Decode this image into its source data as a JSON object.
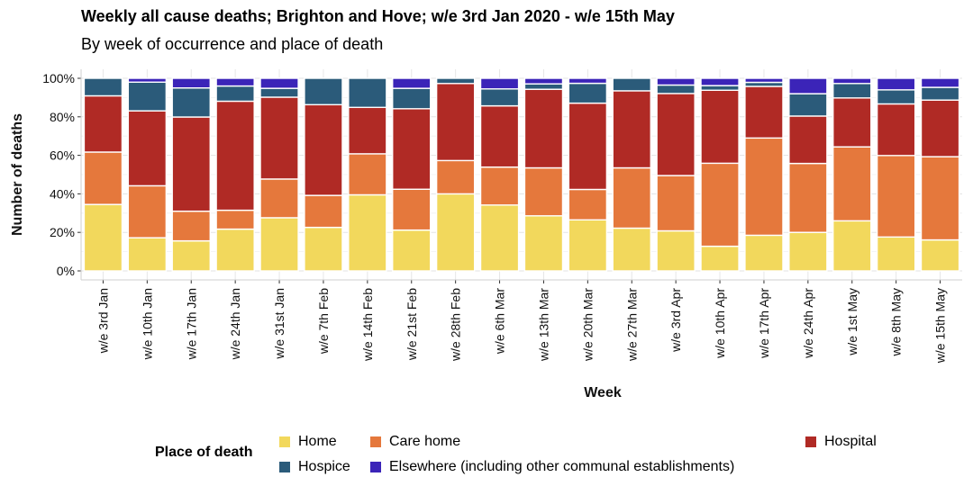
{
  "chart_data": {
    "type": "bar",
    "stacked": "percent",
    "title": "Weekly all cause deaths; Brighton and Hove; w/e 3rd Jan 2020 - w/e 15th May",
    "subtitle": "By week of occurrence and place of death",
    "xlabel": "Week",
    "ylabel": "Number of deaths",
    "ylim": [
      0,
      100
    ],
    "yticks": [
      "0%",
      "20%",
      "40%",
      "60%",
      "80%",
      "100%"
    ],
    "grid": true,
    "categories": [
      "w/e 3rd Jan",
      "w/e 10th Jan",
      "w/e 17th Jan",
      "w/e 24th Jan",
      "w/e 31st Jan",
      "w/e 7th Feb",
      "w/e 14th Feb",
      "w/e 21st Feb",
      "w/e 28th Feb",
      "w/e 6th Mar",
      "w/e 13th Mar",
      "w/e 20th Mar",
      "w/e 27th Mar",
      "w/e 3rd Apr",
      "w/e 10th Apr",
      "w/e 17th Apr",
      "w/e 24th Apr",
      "w/e 1st May",
      "w/e 8th May",
      "w/e 15th May"
    ],
    "series": [
      {
        "name": "Home",
        "color": "#f2d85c",
        "values": [
          34.5,
          17.2,
          15.6,
          21.7,
          27.6,
          22.6,
          39.5,
          21.2,
          40.0,
          34.2,
          28.6,
          26.5,
          22.2,
          20.8,
          12.8,
          18.5,
          20.0,
          26.0,
          17.6,
          16.1
        ]
      },
      {
        "name": "Care home",
        "color": "#e5783c",
        "values": [
          27.2,
          27.0,
          15.4,
          9.8,
          20.1,
          16.6,
          21.3,
          21.2,
          17.3,
          19.7,
          24.9,
          15.8,
          31.3,
          28.7,
          43.1,
          50.5,
          35.8,
          38.4,
          42.3,
          43.2
        ]
      },
      {
        "name": "Hospital",
        "color": "#b02a25",
        "values": [
          29.2,
          38.9,
          48.9,
          56.6,
          42.5,
          47.1,
          24.1,
          41.8,
          40.0,
          31.8,
          40.8,
          44.8,
          40.0,
          42.6,
          37.9,
          26.8,
          24.6,
          25.4,
          26.8,
          29.4
        ]
      },
      {
        "name": "Hospice",
        "color": "#2b5b7a",
        "values": [
          9.1,
          14.9,
          15.1,
          7.9,
          4.6,
          13.7,
          15.1,
          10.6,
          2.7,
          8.8,
          2.8,
          10.3,
          6.5,
          4.4,
          2.4,
          2.1,
          11.6,
          7.5,
          7.3,
          6.6
        ]
      },
      {
        "name": "Elsewhere (including other communal establishments)",
        "color": "#3b24b8",
        "values": [
          0.0,
          2.0,
          5.0,
          4.0,
          5.2,
          0.0,
          0.0,
          5.2,
          0.0,
          5.5,
          2.9,
          2.6,
          0.0,
          3.5,
          3.8,
          2.1,
          8.0,
          2.7,
          6.0,
          4.7
        ]
      }
    ],
    "legend": {
      "title": "Place of death",
      "position": "bottom"
    }
  }
}
